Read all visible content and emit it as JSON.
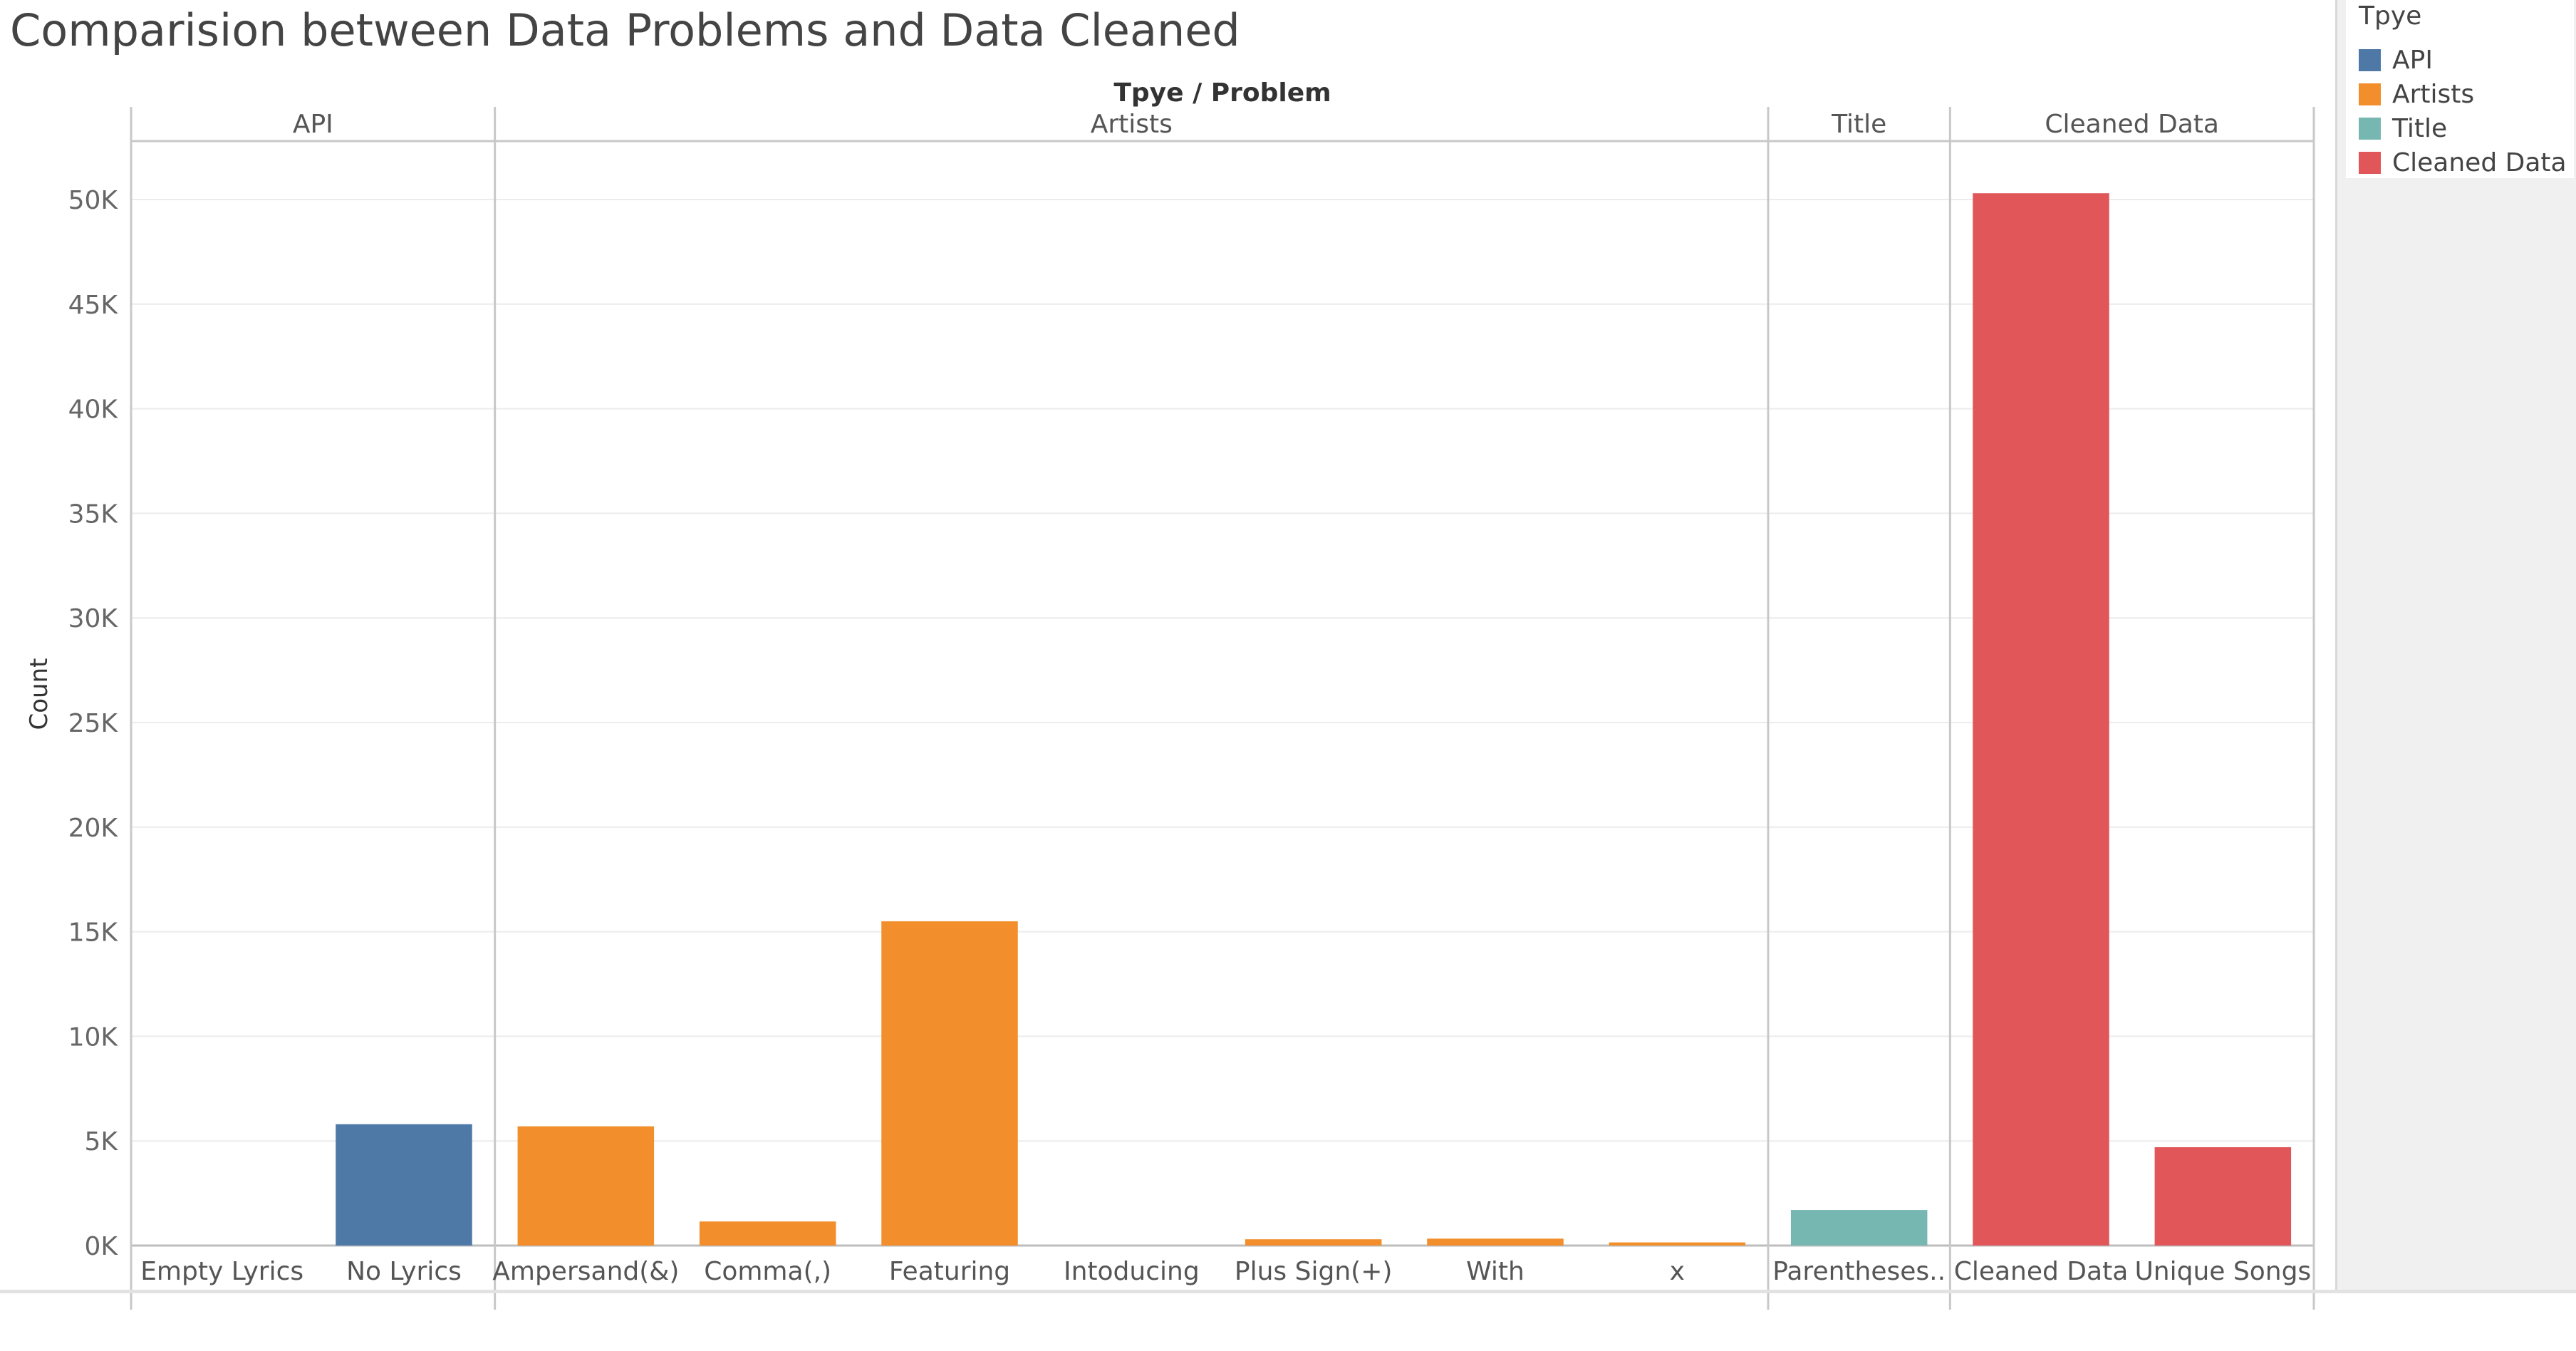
{
  "title": "Comparision between Data Problems and Data Cleaned",
  "chart_data": {
    "type": "bar",
    "header_label": "Tpye / Problem",
    "ylabel": "Count",
    "ylim": [
      0,
      52000
    ],
    "yticks": [
      0,
      5000,
      10000,
      15000,
      20000,
      25000,
      30000,
      35000,
      40000,
      45000,
      50000
    ],
    "ytick_labels": [
      "0K",
      "5K",
      "10K",
      "15K",
      "20K",
      "25K",
      "30K",
      "35K",
      "40K",
      "45K",
      "50K"
    ],
    "grid": true,
    "legend_position": "top-right",
    "groups": [
      {
        "name": "API",
        "color": "#4e79a7",
        "categories": [
          "Empty Lyrics",
          "No Lyrics"
        ],
        "values": [
          0,
          5800
        ]
      },
      {
        "name": "Artists",
        "color": "#f28e2b",
        "categories": [
          "Ampersand(&)",
          "Comma(,)",
          "Featuring",
          "Intoducing",
          "Plus Sign(+)",
          "With",
          "x"
        ],
        "values": [
          5700,
          1150,
          15500,
          0,
          300,
          330,
          150
        ]
      },
      {
        "name": "Title",
        "color": "#76b7b2",
        "categories": [
          "Parentheses.."
        ],
        "values": [
          1700
        ]
      },
      {
        "name": "Cleaned Data",
        "color": "#e15759",
        "categories": [
          "Cleaned Data",
          "Unique Songs"
        ],
        "values": [
          50300,
          4700
        ]
      }
    ]
  },
  "legend": {
    "title": "Tpye",
    "items": [
      {
        "label": "API",
        "color": "#4e79a7"
      },
      {
        "label": "Artists",
        "color": "#f28e2b"
      },
      {
        "label": "Title",
        "color": "#76b7b2"
      },
      {
        "label": "Cleaned Data",
        "color": "#e15759"
      }
    ]
  }
}
